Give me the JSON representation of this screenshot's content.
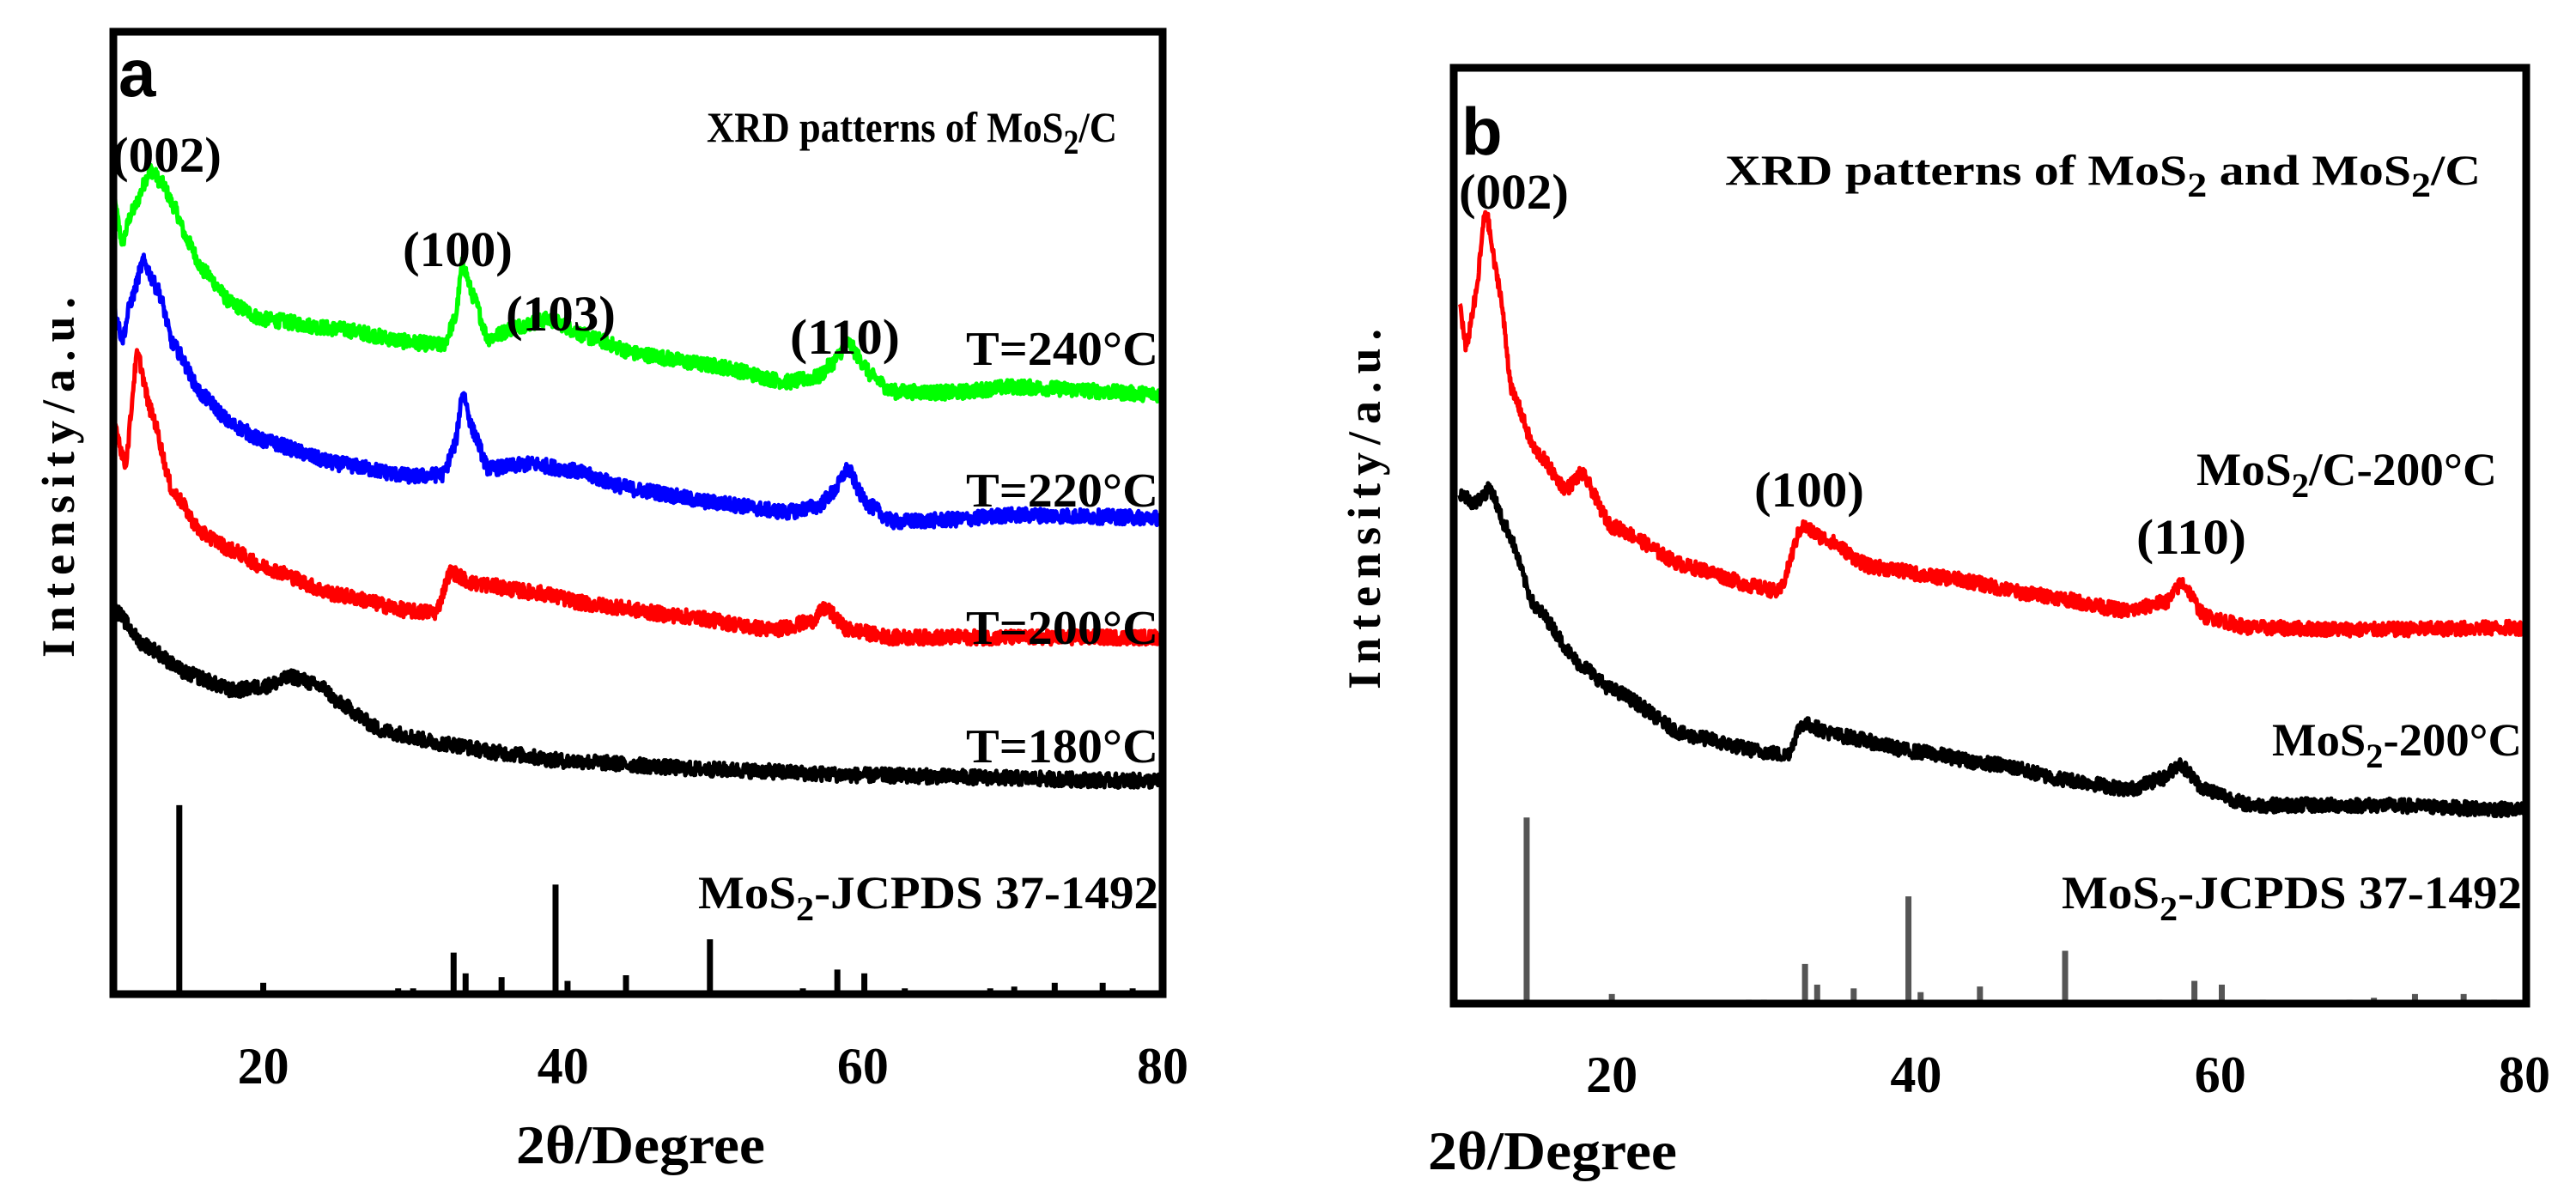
{
  "chart_data": [
    {
      "type": "line",
      "panel_letter": "a",
      "title_parts": [
        "XRD patterns of MoS",
        "2",
        "/C"
      ],
      "xlabel": "2θ/Degree",
      "ylabel": "Intensity/a.u.",
      "xlim": [
        10,
        80
      ],
      "ylim": [
        0,
        100
      ],
      "xticks": [
        "20",
        "40",
        "60",
        "80"
      ],
      "xtick_values": [
        20,
        40,
        60,
        80
      ],
      "peak_labels": [
        {
          "text": "(002)",
          "x": 12.5
        },
        {
          "text": "(100)",
          "x": 33.3
        },
        {
          "text": "(103)",
          "x": 39.5
        },
        {
          "text": "(110)",
          "x": 58.9
        }
      ],
      "series": [
        {
          "name": "T=240°C",
          "color": "#00ff00",
          "points": [
            [
              10,
              82.6
            ],
            [
              10.6,
              78
            ],
            [
              11.2,
              81
            ],
            [
              12.5,
              85.5
            ],
            [
              13.3,
              84
            ],
            [
              14,
              81.8
            ],
            [
              15,
              78
            ],
            [
              16,
              75
            ],
            [
              18,
              71.5
            ],
            [
              20,
              70
            ],
            [
              25,
              69
            ],
            [
              30,
              67.6
            ],
            [
              32,
              67.3
            ],
            [
              32.8,
              70
            ],
            [
              33.3,
              75.8
            ],
            [
              34,
              72.4
            ],
            [
              35,
              68
            ],
            [
              37,
              69.3
            ],
            [
              39,
              70
            ],
            [
              42,
              68
            ],
            [
              45,
              66.4
            ],
            [
              50,
              65.2
            ],
            [
              55,
              63.5
            ],
            [
              57,
              64
            ],
            [
              58,
              65.5
            ],
            [
              59,
              67.6
            ],
            [
              60,
              65.5
            ],
            [
              60.5,
              64.2
            ],
            [
              62,
              62.5
            ],
            [
              66,
              62.4
            ],
            [
              70,
              63
            ],
            [
              80,
              62.2
            ]
          ]
        },
        {
          "name": "T=220°C",
          "color": "#0000ff",
          "points": [
            [
              10,
              71.5
            ],
            [
              10.6,
              68
            ],
            [
              11.2,
              72
            ],
            [
              12,
              76
            ],
            [
              13,
              73
            ],
            [
              14,
              67.3
            ],
            [
              16,
              62
            ],
            [
              18,
              59
            ],
            [
              20,
              57.4
            ],
            [
              25,
              55
            ],
            [
              30,
              53.7
            ],
            [
              32,
              53.9
            ],
            [
              32.8,
              57
            ],
            [
              33.3,
              62.5
            ],
            [
              34,
              58.4
            ],
            [
              35,
              54.5
            ],
            [
              38,
              55
            ],
            [
              40,
              54.5
            ],
            [
              45,
              52.3
            ],
            [
              50,
              51
            ],
            [
              55,
              50
            ],
            [
              57,
              50.6
            ],
            [
              58,
              52
            ],
            [
              59,
              54.5
            ],
            [
              60,
              51.5
            ],
            [
              60.5,
              50.6
            ],
            [
              62,
              49
            ],
            [
              66,
              49.2
            ],
            [
              70,
              49.7
            ],
            [
              80,
              49.4
            ]
          ]
        },
        {
          "name": "T=200°C",
          "color": "#ff0000",
          "points": [
            [
              10,
              59.6
            ],
            [
              10.8,
              55
            ],
            [
              11.6,
              66.4
            ],
            [
              12.5,
              60.5
            ],
            [
              14,
              52
            ],
            [
              16,
              47.7
            ],
            [
              18,
              46
            ],
            [
              20,
              44.3
            ],
            [
              25,
              41.4
            ],
            [
              30,
              39.7
            ],
            [
              31.5,
              39.6
            ],
            [
              32.5,
              43.8
            ],
            [
              34,
              42.6
            ],
            [
              38,
              41.7
            ],
            [
              42,
              40.4
            ],
            [
              48,
              39.2
            ],
            [
              54,
              37.8
            ],
            [
              56.5,
              38.6
            ],
            [
              57.5,
              40
            ],
            [
              59,
              37.8
            ],
            [
              62,
              37
            ],
            [
              70,
              37
            ],
            [
              80,
              37
            ]
          ]
        },
        {
          "name": "T=180°C",
          "color": "#000000",
          "points": [
            [
              10,
              40
            ],
            [
              12,
              36.3
            ],
            [
              15,
              33.2
            ],
            [
              18,
              31.5
            ],
            [
              20,
              31.9
            ],
            [
              22,
              32.9
            ],
            [
              24,
              31.8
            ],
            [
              25,
              30.2
            ],
            [
              28,
              27.3
            ],
            [
              32,
              26
            ],
            [
              36,
              25
            ],
            [
              40,
              24.2
            ],
            [
              50,
              23.3
            ],
            [
              60,
              22.7
            ],
            [
              80,
              22.1
            ]
          ]
        }
      ],
      "reference": {
        "name": "MoS2-JCPDS 37-1492",
        "label_parts": [
          "MoS",
          "2",
          "-JCPDS 37-1492"
        ],
        "color": "#000000",
        "max_height_units": 19.6,
        "sticks": [
          [
            14.4,
            100
          ],
          [
            20,
            6
          ],
          [
            29,
            1.5
          ],
          [
            30,
            2
          ],
          [
            32.7,
            22
          ],
          [
            33.5,
            11
          ],
          [
            35.9,
            9
          ],
          [
            39.5,
            58
          ],
          [
            40.3,
            7
          ],
          [
            44.2,
            10
          ],
          [
            49.8,
            29
          ],
          [
            56,
            3
          ],
          [
            58.3,
            13
          ],
          [
            60.1,
            11
          ],
          [
            62.8,
            2
          ],
          [
            68.5,
            2
          ],
          [
            70.1,
            4
          ],
          [
            72.8,
            6
          ],
          [
            76,
            6
          ],
          [
            78,
            2
          ]
        ]
      }
    },
    {
      "type": "line",
      "panel_letter": "b",
      "title_parts": [
        "XRD patterns of MoS",
        "2",
        " and MoS",
        "2",
        "/C"
      ],
      "xlabel": "2θ/Degree",
      "ylabel": "Intensity/a.u.",
      "xlim": [
        10,
        80
      ],
      "ylim": [
        0,
        100
      ],
      "xticks": [
        "20",
        "40",
        "60",
        "80"
      ],
      "xtick_values": [
        20,
        40,
        60,
        80
      ],
      "peak_labels": [
        {
          "text": "(002)",
          "x": 11.7
        },
        {
          "text": "(100)",
          "x": 32.8
        },
        {
          "text": "(110)",
          "x": 57.5
        }
      ],
      "series": [
        {
          "name_parts": [
            "MoS",
            "2",
            "/C-200°C"
          ],
          "name": "MoS2/C-200°C",
          "color": "#ff0000",
          "points": [
            [
              10,
              74.7
            ],
            [
              10.4,
              70
            ],
            [
              11,
              75
            ],
            [
              11.7,
              84.6
            ],
            [
              12.5,
              77.3
            ],
            [
              13.5,
              65
            ],
            [
              15,
              59
            ],
            [
              17,
              55
            ],
            [
              18,
              56.6
            ],
            [
              20,
              51
            ],
            [
              25,
              46.7
            ],
            [
              30,
              44.4
            ],
            [
              31,
              44
            ],
            [
              32.5,
              51
            ],
            [
              34,
              49.7
            ],
            [
              37,
              46.7
            ],
            [
              42,
              45.5
            ],
            [
              48,
              43.7
            ],
            [
              54,
              42
            ],
            [
              56.5,
              43
            ],
            [
              57.5,
              45
            ],
            [
              59,
              41.4
            ],
            [
              62,
              40.2
            ],
            [
              70,
              40
            ],
            [
              80,
              40.2
            ]
          ]
        },
        {
          "name_parts": [
            "MoS",
            "2",
            "-200°C"
          ],
          "name": "MoS2-200°C",
          "color": "#000000",
          "points": [
            [
              10,
              54.5
            ],
            [
              11,
              53.5
            ],
            [
              12,
              55
            ],
            [
              13,
              51
            ],
            [
              15,
              42.3
            ],
            [
              18,
              36.2
            ],
            [
              20,
              33.6
            ],
            [
              25,
              28.7
            ],
            [
              30,
              27
            ],
            [
              31.5,
              26.6
            ],
            [
              32.5,
              30
            ],
            [
              35,
              28.7
            ],
            [
              40,
              27
            ],
            [
              45,
              25.7
            ],
            [
              50,
              24
            ],
            [
              54,
              23
            ],
            [
              56.3,
              24.2
            ],
            [
              57.3,
              25.7
            ],
            [
              59,
              23
            ],
            [
              62,
              21.3
            ],
            [
              70,
              21.3
            ],
            [
              80,
              20.8
            ]
          ]
        }
      ],
      "reference": {
        "name": "MoS2-JCPDS 37-1492",
        "label_parts": [
          "MoS",
          "2",
          "-JCPDS 37-1492"
        ],
        "color": "#555555",
        "max_height_units": 20,
        "sticks": [
          [
            14.4,
            100
          ],
          [
            20,
            6
          ],
          [
            29,
            1.5
          ],
          [
            30,
            2
          ],
          [
            32.7,
            22
          ],
          [
            33.5,
            11
          ],
          [
            35.9,
            9
          ],
          [
            39.5,
            58
          ],
          [
            40.3,
            7
          ],
          [
            44.2,
            10
          ],
          [
            49.8,
            29
          ],
          [
            56,
            3
          ],
          [
            58.3,
            13
          ],
          [
            60.1,
            11
          ],
          [
            62.8,
            2
          ],
          [
            68.5,
            2
          ],
          [
            70.1,
            4
          ],
          [
            72.8,
            6
          ],
          [
            76,
            6
          ],
          [
            78,
            2
          ]
        ]
      }
    }
  ]
}
